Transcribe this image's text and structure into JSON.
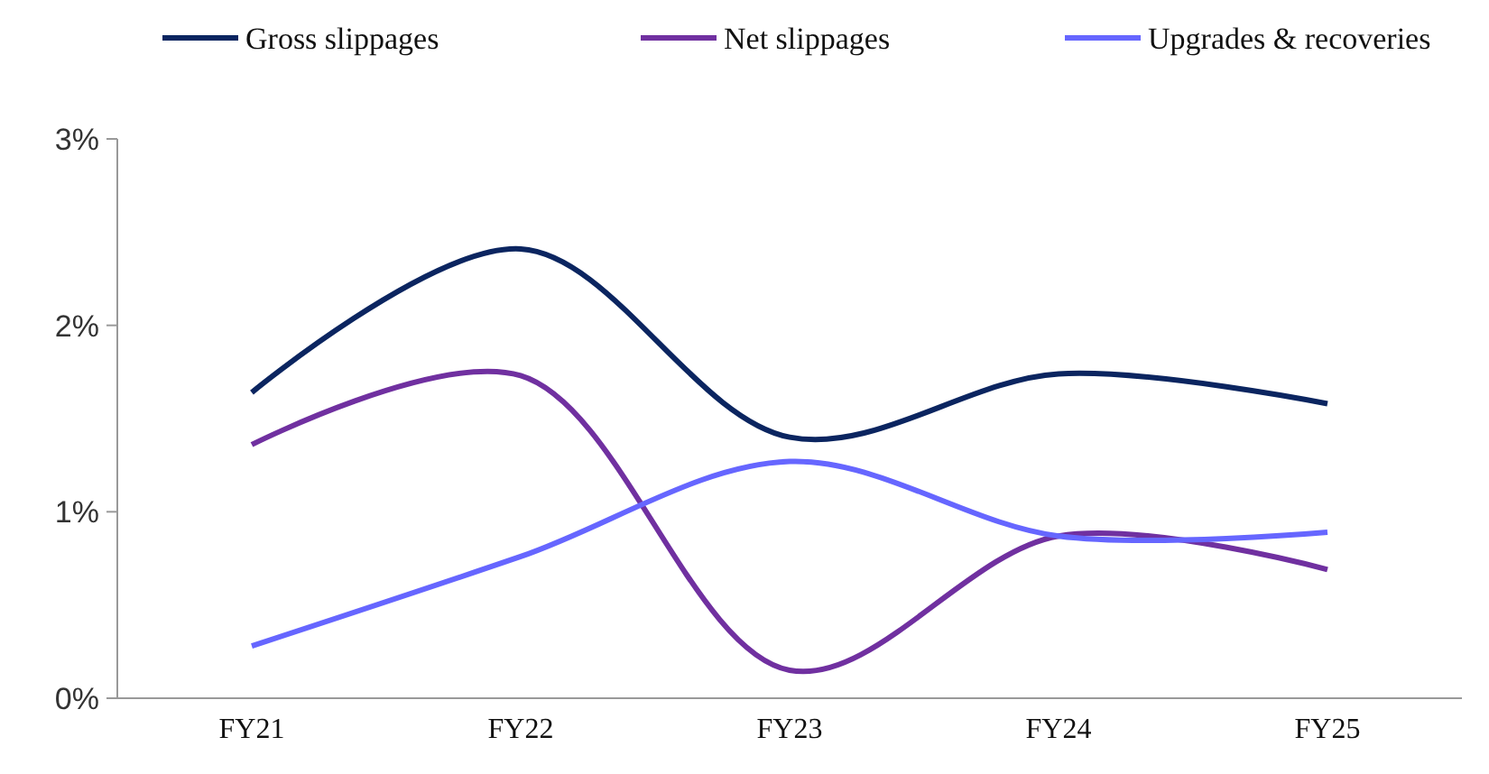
{
  "chart_data": {
    "type": "line",
    "categories": [
      "FY21",
      "FY22",
      "FY23",
      "FY24",
      "FY25"
    ],
    "series": [
      {
        "name": "Gross slippages",
        "color": "#0b2560",
        "values": [
          1.64,
          2.41,
          1.4,
          1.74,
          1.58
        ]
      },
      {
        "name": "Net slippages",
        "color": "#7030a0",
        "values": [
          1.36,
          1.73,
          0.15,
          0.87,
          0.69
        ]
      },
      {
        "name": "Upgrades & recoveries",
        "color": "#6666ff",
        "values": [
          0.28,
          0.76,
          1.27,
          0.87,
          0.89
        ]
      }
    ],
    "ylim": [
      0,
      3
    ],
    "yticks": [
      {
        "value": 0,
        "label": "0%"
      },
      {
        "value": 1,
        "label": "1%"
      },
      {
        "value": 2,
        "label": "2%"
      },
      {
        "value": 3,
        "label": "3%"
      }
    ],
    "grid": false,
    "legend": "top",
    "line_style": "solid"
  }
}
